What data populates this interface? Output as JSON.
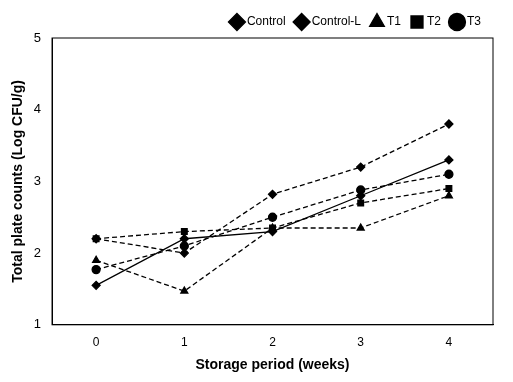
{
  "chart_data": {
    "type": "line",
    "x_label": "Storage period (weeks)",
    "y_label": "Total plate counts (Log CFU/g)",
    "categories": [
      "0",
      "1",
      "2",
      "3",
      "4"
    ],
    "series": [
      {
        "name": "Control",
        "color": "#000000",
        "marker": "diamond",
        "line_style": "solid",
        "values": [
          1.55,
          2.2,
          2.3,
          2.8,
          3.3
        ]
      },
      {
        "name": "Control-L",
        "color": "#000000",
        "marker": "diamond",
        "line_style": "dashed",
        "values": [
          2.2,
          2.0,
          2.82,
          3.2,
          3.8
        ]
      },
      {
        "name": "T1",
        "color": "#000000",
        "marker": "triangle",
        "line_style": "dashed",
        "values": [
          1.9,
          1.47,
          2.35,
          2.35,
          2.8
        ]
      },
      {
        "name": "T2",
        "color": "#000000",
        "marker": "square",
        "line_style": "dashed",
        "values": [
          2.2,
          2.3,
          2.35,
          2.7,
          2.9
        ]
      },
      {
        "name": "T3",
        "color": "#000000",
        "marker": "circle",
        "line_style": "dashed",
        "values": [
          1.77,
          2.1,
          2.5,
          2.88,
          3.1
        ]
      }
    ],
    "ylim": [
      1,
      5
    ],
    "yticks": [
      1,
      2,
      3,
      4,
      5
    ],
    "grid": false,
    "legend": "top"
  }
}
